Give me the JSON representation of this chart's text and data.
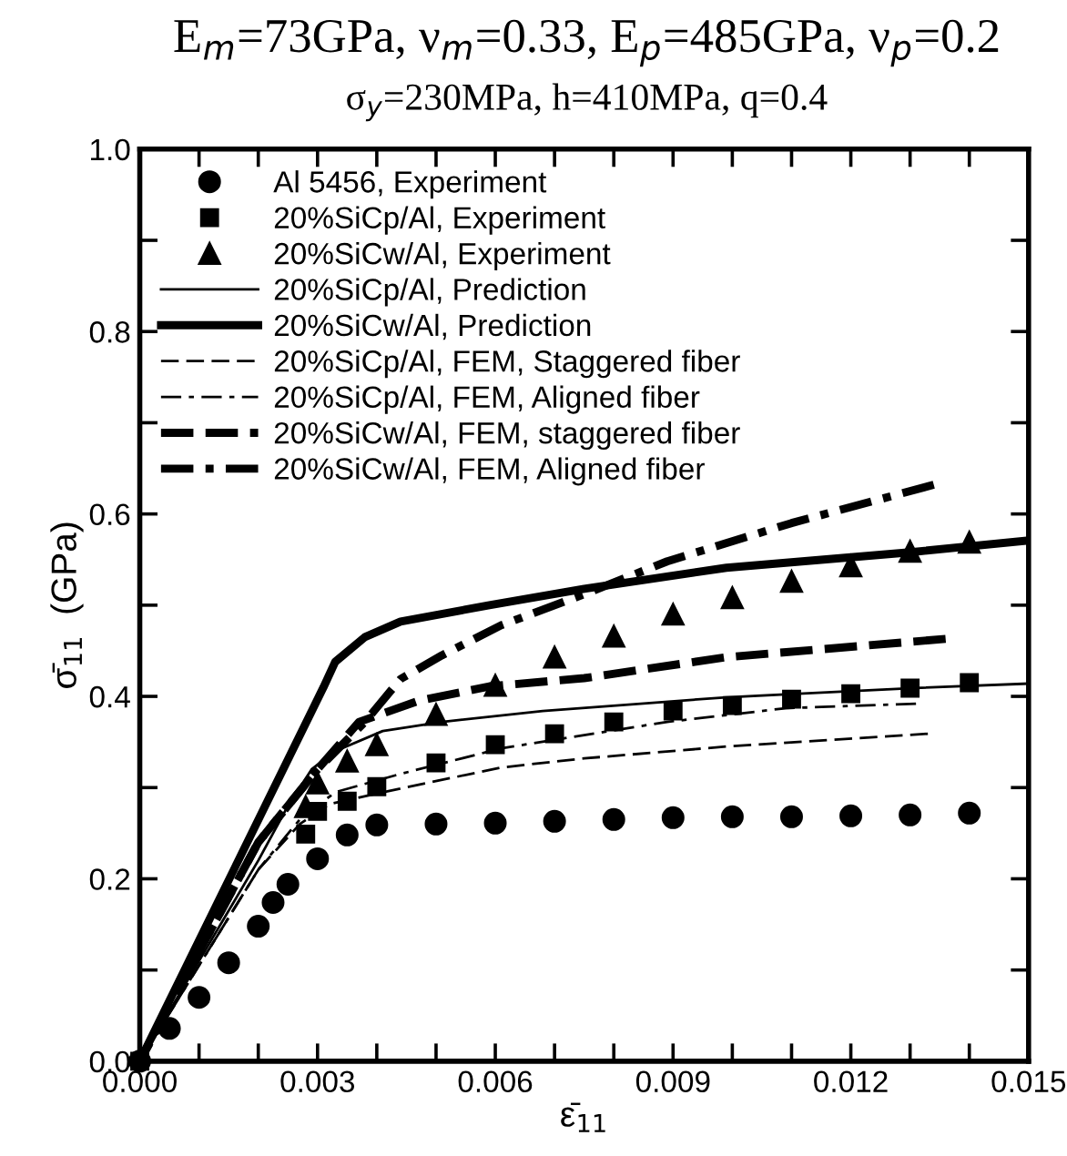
{
  "chart_data": {
    "type": "line",
    "title": "E$_{m}$=73GPa, ν$_{m}$=0.33, E$_{p}$=485GPa, ν$_{p}$=0.2",
    "subtitle": "σ$_{y}$=230MPa, h=410MPa, q=0.4",
    "xlabel": "ε̄$_{11}$",
    "ylabel": "σ̄$_{11}$  (GPa)",
    "xlim": [
      0,
      0.015
    ],
    "ylim": [
      0,
      1.0
    ],
    "xticks": [
      {
        "value": 0,
        "label": "0.000"
      },
      {
        "value": 0.001,
        "label": null
      },
      {
        "value": 0.002,
        "label": null
      },
      {
        "value": 0.003,
        "label": "0.003"
      },
      {
        "value": 0.004,
        "label": null
      },
      {
        "value": 0.005,
        "label": null
      },
      {
        "value": 0.006,
        "label": "0.006"
      },
      {
        "value": 0.007,
        "label": null
      },
      {
        "value": 0.008,
        "label": null
      },
      {
        "value": 0.009,
        "label": "0.009"
      },
      {
        "value": 0.01,
        "label": null
      },
      {
        "value": 0.011,
        "label": null
      },
      {
        "value": 0.012,
        "label": "0.012"
      },
      {
        "value": 0.013,
        "label": null
      },
      {
        "value": 0.014,
        "label": null
      },
      {
        "value": 0.015,
        "label": "0.015"
      }
    ],
    "yticks": [
      {
        "value": 0,
        "label": "0.0"
      },
      {
        "value": 0.1,
        "label": null
      },
      {
        "value": 0.2,
        "label": "0.2"
      },
      {
        "value": 0.3,
        "label": null
      },
      {
        "value": 0.4,
        "label": "0.4"
      },
      {
        "value": 0.5,
        "label": null
      },
      {
        "value": 0.6,
        "label": "0.6"
      },
      {
        "value": 0.7,
        "label": null
      },
      {
        "value": 0.8,
        "label": "0.8"
      },
      {
        "value": 0.9,
        "label": null
      },
      {
        "value": 1.0,
        "label": "1.0"
      }
    ],
    "grid": false,
    "legend": "top left",
    "series": [
      {
        "name": "Al 5456, Experiment",
        "type": "scatter",
        "marker": "circle",
        "color": "#000000",
        "x": [
          0,
          0.0005,
          0.001,
          0.0015,
          0.002,
          0.00225,
          0.0025,
          0.003,
          0.0035,
          0.004,
          0.005,
          0.006,
          0.007,
          0.008,
          0.009,
          0.01,
          0.011,
          0.012,
          0.013,
          0.014
        ],
        "values": [
          0,
          0.036,
          0.07,
          0.108,
          0.148,
          0.174,
          0.194,
          0.222,
          0.248,
          0.259,
          0.26,
          0.261,
          0.263,
          0.265,
          0.267,
          0.268,
          0.268,
          0.269,
          0.27,
          0.272
        ]
      },
      {
        "name": "20%SiCp/Al, Experiment",
        "type": "scatter",
        "marker": "square",
        "color": "#000000",
        "x": [
          0,
          0.0028,
          0.003,
          0.0035,
          0.004,
          0.005,
          0.006,
          0.007,
          0.008,
          0.009,
          0.01,
          0.011,
          0.012,
          0.013,
          0.014
        ],
        "values": [
          0,
          0.249,
          0.274,
          0.285,
          0.301,
          0.327,
          0.347,
          0.359,
          0.372,
          0.384,
          0.39,
          0.397,
          0.403,
          0.409,
          0.415
        ]
      },
      {
        "name": "20%SiCw/Al, Experiment",
        "type": "scatter",
        "marker": "triangle",
        "color": "#000000",
        "x": [
          0.0028,
          0.003,
          0.0035,
          0.004,
          0.005,
          0.006,
          0.007,
          0.008,
          0.009,
          0.01,
          0.011,
          0.012,
          0.013,
          0.014
        ],
        "values": [
          0.279,
          0.305,
          0.329,
          0.347,
          0.38,
          0.412,
          0.443,
          0.466,
          0.49,
          0.508,
          0.526,
          0.543,
          0.559,
          0.569
        ]
      },
      {
        "name": "20%SiCp/Al, Prediction",
        "line_style": "solid",
        "marker": "none",
        "color": "#000000",
        "x": [
          0,
          0.002,
          0.0025,
          0.0029,
          0.0033,
          0.0041,
          0.0051,
          0.0068,
          0.0099,
          0.013,
          0.015
        ],
        "values": [
          0,
          0.22,
          0.28,
          0.32,
          0.34,
          0.362,
          0.372,
          0.384,
          0.399,
          0.409,
          0.414
        ]
      },
      {
        "name": "20%SiCw/Al, Prediction",
        "line_style": "solid",
        "marker": "none",
        "color": "#000000",
        "x": [
          0,
          0.0031,
          0.0033,
          0.0038,
          0.0044,
          0.0059,
          0.0075,
          0.0099,
          0.013,
          0.015
        ],
        "values": [
          0,
          0.41,
          0.438,
          0.465,
          0.482,
          0.5,
          0.518,
          0.541,
          0.558,
          0.571
        ]
      },
      {
        "name": "20%SiCp/Al, FEM, Staggered fiber",
        "line_style": "dashed",
        "marker": "none",
        "color": "#000000",
        "x": [
          0,
          0.002,
          0.0027,
          0.0032,
          0.0044,
          0.0061,
          0.0075,
          0.0099,
          0.0133
        ],
        "values": [
          0,
          0.21,
          0.26,
          0.282,
          0.299,
          0.322,
          0.332,
          0.345,
          0.359
        ]
      },
      {
        "name": "20%SiCp/Al, FEM, Aligned fiber",
        "line_style": "dashdot",
        "marker": "none",
        "color": "#000000",
        "x": [
          0,
          0.002,
          0.0027,
          0.0033,
          0.0044,
          0.0061,
          0.0089,
          0.0109,
          0.0131
        ],
        "values": [
          0,
          0.21,
          0.265,
          0.295,
          0.315,
          0.343,
          0.372,
          0.387,
          0.392
        ]
      },
      {
        "name": "20%SiCw/Al, FEM, staggered fiber",
        "line_style": "dashed",
        "marker": "none",
        "color": "#000000",
        "x": [
          0,
          0.002,
          0.003,
          0.0037,
          0.0047,
          0.0059,
          0.0075,
          0.0099,
          0.0136
        ],
        "values": [
          0,
          0.24,
          0.32,
          0.372,
          0.395,
          0.411,
          0.42,
          0.443,
          0.463
        ]
      },
      {
        "name": "20%SiCw/Al, FEM, Aligned fiber",
        "line_style": "dashdot",
        "marker": "none",
        "color": "#000000",
        "x": [
          0,
          0.002,
          0.003,
          0.0038,
          0.0044,
          0.0051,
          0.0061,
          0.0075,
          0.0089,
          0.011,
          0.0134
        ],
        "values": [
          0,
          0.24,
          0.32,
          0.372,
          0.419,
          0.445,
          0.478,
          0.512,
          0.548,
          0.59,
          0.632
        ]
      }
    ]
  }
}
